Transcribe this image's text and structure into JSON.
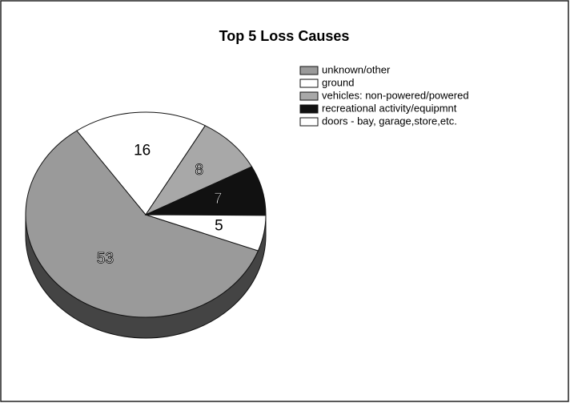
{
  "chart_data": {
    "type": "pie",
    "title": "Top 5 Loss Causes",
    "categories": [
      "unknown/other",
      "ground",
      "vehicles: non-powered/powered",
      "recreational activity/equipmnt",
      "doors - bay, garage,store,etc."
    ],
    "values": [
      53,
      16,
      8,
      7,
      5
    ],
    "colors": [
      "#9a9a9a",
      "#ffffff",
      "#a8a8a8",
      "#111111",
      "#ffffff"
    ],
    "legend": "right"
  }
}
